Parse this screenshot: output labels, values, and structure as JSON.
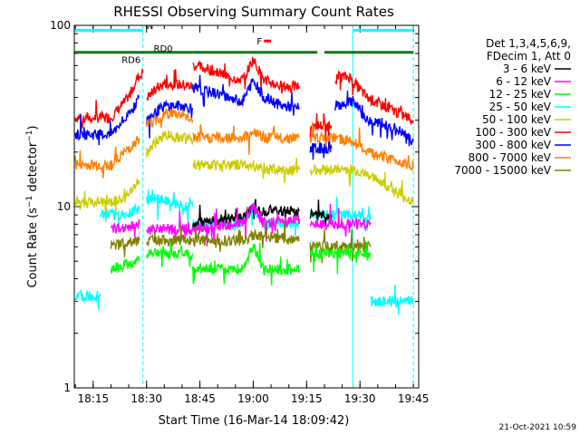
{
  "chart_data": {
    "type": "line",
    "title": "RHESSI Observing Summary Count Rates",
    "xlabel": "Start Time (16-Mar-14 18:09:42)",
    "ylabel": "Count Rate (s⁻¹ detector⁻¹)",
    "ylabel_main": "Count Rate (s",
    "ylabel_sup1": "−1",
    "ylabel_mid": " detector",
    "ylabel_sup2": "−1",
    "ylabel_end": ")",
    "y_scale": "log",
    "ylim": [
      1,
      100
    ],
    "xlim": [
      "18:09:42",
      "19:46:30"
    ],
    "x_ticks": [
      "18:15",
      "18:30",
      "18:45",
      "19:00",
      "19:15",
      "19:30",
      "19:45"
    ],
    "y_ticks": [
      "1",
      "10",
      "100"
    ],
    "legend": {
      "placement": "right",
      "header": [
        "Det 1,3,4,5,6,9,",
        "FDecim 1, Att 0"
      ],
      "entries": [
        {
          "name": "3 - 6 keV",
          "color": "#000000"
        },
        {
          "name": "6 - 12 keV",
          "color": "#ff00ff"
        },
        {
          "name": "12 - 25 keV",
          "color": "#00ff00"
        },
        {
          "name": "25 - 50 keV",
          "color": "#00ffff"
        },
        {
          "name": "50 - 100 keV",
          "color": "#cccc00"
        },
        {
          "name": "100 - 300 keV",
          "color": "#ff0000"
        },
        {
          "name": "300 - 800 keV",
          "color": "#0000ff"
        },
        {
          "name": "800 - 7000 keV",
          "color": "#ff8000"
        },
        {
          "name": "7000 - 15000 keV",
          "color": "#808000"
        }
      ]
    },
    "series": [
      {
        "name": "100 - 300 keV",
        "color": "#ff0000",
        "segments": [
          [
            [
              "18:10",
              31
            ],
            [
              "18:20",
              31
            ],
            [
              "18:25",
              40
            ],
            [
              "18:27",
              50
            ],
            [
              "18:29",
              55
            ]
          ],
          [
            [
              "18:30",
              40
            ],
            [
              "18:35",
              48
            ],
            [
              "18:40",
              47
            ],
            [
              "18:43",
              46
            ]
          ],
          [
            [
              "18:43",
              60
            ],
            [
              "18:48",
              57
            ],
            [
              "18:53",
              52
            ],
            [
              "18:57",
              50
            ],
            [
              "19:00",
              65
            ],
            [
              "19:03",
              50
            ],
            [
              "19:08",
              46
            ],
            [
              "19:13",
              46
            ]
          ],
          [
            [
              "19:16",
              28
            ],
            [
              "19:22",
              28
            ]
          ],
          [
            [
              "19:23",
              52
            ],
            [
              "19:27",
              52
            ],
            [
              "19:32",
              40
            ],
            [
              "19:38",
              35
            ],
            [
              "19:42",
              32
            ],
            [
              "19:45",
              30
            ]
          ]
        ]
      },
      {
        "name": "300 - 800 keV",
        "color": "#0000ff",
        "segments": [
          [
            [
              "18:10",
              25
            ],
            [
              "18:20",
              25
            ],
            [
              "18:25",
              32
            ],
            [
              "18:28",
              40
            ]
          ],
          [
            [
              "18:30",
              30
            ],
            [
              "18:35",
              36
            ],
            [
              "18:40",
              36
            ],
            [
              "18:43",
              35
            ]
          ],
          [
            [
              "18:43",
              45
            ],
            [
              "18:50",
              42
            ],
            [
              "18:57",
              38
            ],
            [
              "19:00",
              50
            ],
            [
              "19:03",
              40
            ],
            [
              "19:08",
              36
            ],
            [
              "19:13",
              35
            ]
          ],
          [
            [
              "19:16",
              21
            ],
            [
              "19:22",
              21
            ]
          ],
          [
            [
              "19:23",
              36
            ],
            [
              "19:28",
              38
            ],
            [
              "19:32",
              30
            ],
            [
              "19:40",
              27
            ],
            [
              "19:45",
              23
            ]
          ]
        ]
      },
      {
        "name": "800 - 7000 keV",
        "color": "#ff8000",
        "segments": [
          [
            [
              "18:10",
              17
            ],
            [
              "18:20",
              17
            ],
            [
              "18:25",
              21
            ],
            [
              "18:28",
              24
            ]
          ],
          [
            [
              "18:30",
              28
            ],
            [
              "18:36",
              33
            ],
            [
              "18:40",
              32
            ],
            [
              "18:43",
              30
            ]
          ],
          [
            [
              "18:43",
              24
            ],
            [
              "18:50",
              24
            ],
            [
              "18:57",
              24
            ],
            [
              "19:00",
              26
            ],
            [
              "19:03",
              24
            ],
            [
              "19:08",
              24
            ],
            [
              "19:13",
              24
            ]
          ],
          [
            [
              "19:16",
              24
            ],
            [
              "19:22",
              24
            ],
            [
              "19:28",
              23
            ],
            [
              "19:32",
              20
            ],
            [
              "19:40",
              18
            ],
            [
              "19:45",
              17
            ]
          ]
        ]
      },
      {
        "name": "50 - 100 keV",
        "color": "#cccc00",
        "segments": [
          [
            [
              "18:10",
              10.5
            ],
            [
              "18:20",
              10.5
            ],
            [
              "18:24",
              11
            ],
            [
              "18:28",
              14
            ]
          ],
          [
            [
              "18:30",
              20
            ],
            [
              "18:35",
              25
            ],
            [
              "18:40",
              24
            ],
            [
              "18:43",
              23
            ]
          ],
          [
            [
              "18:43",
              17
            ],
            [
              "18:50",
              17
            ],
            [
              "18:57",
              17
            ],
            [
              "19:00",
              17
            ],
            [
              "19:03",
              16
            ],
            [
              "19:08",
              16
            ],
            [
              "19:13",
              16
            ]
          ],
          [
            [
              "19:16",
              16
            ],
            [
              "19:22",
              16
            ],
            [
              "19:28",
              16
            ],
            [
              "19:35",
              14
            ],
            [
              "19:40",
              12
            ],
            [
              "19:45",
              10.5
            ]
          ]
        ]
      },
      {
        "name": "25 - 50 keV",
        "color": "#00ffff",
        "segments": [
          [
            [
              "18:10",
              3.2
            ],
            [
              "18:17",
              3.2
            ]
          ],
          [
            [
              "18:17",
              9
            ],
            [
              "18:24",
              9
            ],
            [
              "18:28",
              10
            ]
          ],
          [
            [
              "18:30",
              11
            ],
            [
              "18:35",
              11
            ],
            [
              "18:40",
              10
            ],
            [
              "18:43",
              10
            ]
          ],
          [
            [
              "18:43",
              8
            ],
            [
              "18:50",
              8
            ],
            [
              "18:57",
              8
            ],
            [
              "19:00",
              10
            ],
            [
              "19:03",
              8
            ],
            [
              "19:08",
              8
            ],
            [
              "19:13",
              8
            ]
          ],
          [
            [
              "19:16",
              9
            ],
            [
              "19:22",
              9
            ],
            [
              "19:28",
              9
            ],
            [
              "19:33",
              8.5
            ]
          ],
          [
            [
              "19:33",
              3
            ],
            [
              "19:40",
              3
            ],
            [
              "19:45",
              3
            ]
          ]
        ]
      },
      {
        "name": "3 - 6 keV",
        "color": "#000000",
        "segments": [
          [
            [
              "18:43",
              8
            ],
            [
              "18:50",
              8.5
            ],
            [
              "18:57",
              8.5
            ],
            [
              "19:00",
              10
            ],
            [
              "19:03",
              9.5
            ],
            [
              "19:08",
              9.5
            ],
            [
              "19:13",
              9.5
            ]
          ],
          [
            [
              "19:16",
              9
            ],
            [
              "19:22",
              9
            ]
          ]
        ]
      },
      {
        "name": "6 - 12 keV",
        "color": "#ff00ff",
        "segments": [
          [
            [
              "18:20",
              7.5
            ],
            [
              "18:28",
              8
            ]
          ],
          [
            [
              "18:30",
              7.5
            ],
            [
              "18:43",
              7.5
            ]
          ],
          [
            [
              "18:43",
              7.5
            ],
            [
              "18:57",
              8
            ],
            [
              "19:00",
              10
            ],
            [
              "19:03",
              8
            ],
            [
              "19:13",
              8.5
            ]
          ],
          [
            [
              "19:16",
              8
            ],
            [
              "19:28",
              8
            ],
            [
              "19:33",
              8
            ]
          ]
        ]
      },
      {
        "name": "7000 - 15000 keV",
        "color": "#808000",
        "segments": [
          [
            [
              "18:20",
              6
            ],
            [
              "18:28",
              6.5
            ]
          ],
          [
            [
              "18:30",
              6.5
            ],
            [
              "18:43",
              6.5
            ]
          ],
          [
            [
              "18:43",
              6.5
            ],
            [
              "18:57",
              6.5
            ],
            [
              "19:00",
              7
            ],
            [
              "19:13",
              6.5
            ]
          ],
          [
            [
              "19:16",
              6
            ],
            [
              "19:33",
              6
            ]
          ]
        ]
      },
      {
        "name": "12 - 25 keV",
        "color": "#00ff00",
        "segments": [
          [
            [
              "18:20",
              4.5
            ],
            [
              "18:28",
              5
            ]
          ],
          [
            [
              "18:30",
              5.5
            ],
            [
              "18:36",
              5.5
            ],
            [
              "18:43",
              5.5
            ]
          ],
          [
            [
              "18:43",
              4.5
            ],
            [
              "18:50",
              4.5
            ],
            [
              "18:57",
              4.5
            ],
            [
              "19:00",
              6
            ],
            [
              "19:03",
              4.5
            ],
            [
              "19:08",
              4.5
            ],
            [
              "19:13",
              4.5
            ]
          ],
          [
            [
              "19:16",
              5.5
            ],
            [
              "19:22",
              5.5
            ],
            [
              "19:28",
              5.5
            ],
            [
              "19:33",
              5.5
            ]
          ]
        ]
      }
    ],
    "annotations": {
      "vlines_cyan_solid": [
        "18:09:42",
        "19:28"
      ],
      "vlines_cyan_dashed": [
        "18:29",
        "19:45"
      ],
      "bars_top": [
        {
          "label": "N",
          "color": "#00ffff",
          "y": 94,
          "spans": [
            [
              "18:09:42",
              "18:29"
            ],
            [
              "19:28",
              "19:45"
            ]
          ]
        },
        {
          "label": "F",
          "color": "#ff0000",
          "y": 82,
          "spans": [
            [
              "19:03",
              "19:05"
            ]
          ]
        },
        {
          "label": "RD0",
          "color": "#008000",
          "y": 71,
          "spans": [
            [
              "18:43",
              "19:13"
            ],
            [
              "19:13",
              "19:18"
            ],
            [
              "19:20",
              "19:45"
            ]
          ]
        },
        {
          "label": "RD6",
          "color": "#008000",
          "y": 71,
          "spans": [
            [
              "18:09:42",
              "18:43"
            ]
          ]
        }
      ],
      "bar_labels": [
        {
          "text": "N",
          "color": "#00ffff",
          "at": "18:30",
          "y": 100
        },
        {
          "text": "F",
          "color": "#ff0000",
          "at": "19:01",
          "y": 82
        },
        {
          "text": "RD0",
          "color": "#008000",
          "at": "18:32",
          "y": 75
        },
        {
          "text": "RD6",
          "color": "#008000",
          "at": "18:23",
          "y": 65
        }
      ],
      "timestamp": "21-Oct-2021 10:59"
    }
  }
}
